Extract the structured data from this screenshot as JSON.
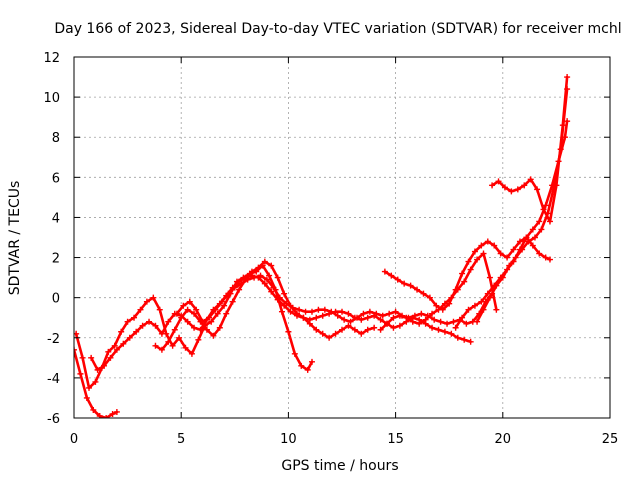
{
  "chart_data": {
    "type": "scatter",
    "title": "Day 166 of 2023, Sidereal Day-to-day VTEC variation (SDTVAR) for receiver mchl",
    "xlabel": "GPS time / hours",
    "ylabel": "SDTVAR / TECUs",
    "xlim": [
      0,
      25
    ],
    "ylim": [
      -6,
      12
    ],
    "xticks": [
      "0",
      "5",
      "10",
      "15",
      "20",
      "25"
    ],
    "yticks": [
      "-6",
      "-4",
      "-2",
      "0",
      "2",
      "4",
      "6",
      "8",
      "10",
      "12"
    ],
    "grid": true,
    "marker": "+",
    "color": "#ff0000",
    "series": [
      {
        "name": "s1",
        "x": [
          0.0,
          0.3,
          0.6,
          0.9,
          1.2,
          1.5,
          1.8,
          2.0
        ],
        "y": [
          -2.6,
          -3.8,
          -5.0,
          -5.6,
          -5.9,
          -6.0,
          -5.8,
          -5.7
        ]
      },
      {
        "name": "s2",
        "x": [
          0.1,
          0.4,
          0.7,
          1.0,
          1.3,
          1.6,
          1.9,
          2.2,
          2.5,
          2.8,
          3.1,
          3.4,
          3.7,
          4.0,
          4.3,
          4.6,
          4.9,
          5.2,
          5.5,
          5.8,
          6.1,
          6.4,
          6.7,
          7.0,
          7.3,
          7.6,
          7.9,
          8.2,
          8.5,
          8.8,
          9.1,
          9.4,
          9.7,
          10.0,
          10.3,
          10.6,
          10.9,
          11.1
        ],
        "y": [
          -1.8,
          -3.0,
          -4.5,
          -4.2,
          -3.5,
          -2.7,
          -2.4,
          -1.7,
          -1.2,
          -1.0,
          -0.6,
          -0.2,
          0.0,
          -0.6,
          -1.8,
          -2.4,
          -2.0,
          -2.5,
          -2.8,
          -2.1,
          -1.4,
          -1.2,
          -0.8,
          -0.4,
          0.2,
          0.8,
          1.0,
          1.2,
          1.3,
          1.6,
          1.1,
          0.4,
          -0.7,
          -1.7,
          -2.8,
          -3.4,
          -3.6,
          -3.2
        ]
      },
      {
        "name": "s3",
        "x": [
          0.8,
          1.1,
          1.4,
          1.7,
          2.0,
          2.3,
          2.6,
          2.9,
          3.2,
          3.5,
          3.8,
          4.1,
          4.4,
          4.7,
          5.0,
          5.3,
          5.6,
          5.9,
          6.2,
          6.5,
          6.8,
          7.1,
          7.4,
          7.7,
          8.0,
          8.3,
          8.6,
          8.9,
          9.2,
          9.5,
          9.8,
          10.1,
          10.4,
          10.7,
          11.0,
          11.3,
          11.6,
          11.9,
          12.2,
          12.5,
          12.8,
          13.1,
          13.4,
          13.7,
          14.0
        ],
        "y": [
          -3.0,
          -3.6,
          -3.4,
          -3.0,
          -2.6,
          -2.3,
          -2.0,
          -1.7,
          -1.4,
          -1.2,
          -1.4,
          -1.8,
          -1.2,
          -0.8,
          -0.9,
          -1.2,
          -1.5,
          -1.6,
          -1.1,
          -0.6,
          -0.3,
          0.1,
          0.5,
          0.8,
          1.0,
          1.1,
          1.0,
          0.7,
          0.3,
          -0.1,
          -0.4,
          -0.7,
          -0.9,
          -1.0,
          -1.3,
          -1.6,
          -1.8,
          -2.0,
          -1.8,
          -1.6,
          -1.4,
          -1.6,
          -1.8,
          -1.6,
          -1.5
        ]
      },
      {
        "name": "s4",
        "x": [
          3.8,
          4.1,
          4.4,
          4.7,
          5.0,
          5.3,
          5.6,
          5.9,
          6.2,
          6.5,
          6.8,
          7.1,
          7.4,
          7.7,
          8.0,
          8.3,
          8.6,
          8.9,
          9.2,
          9.5,
          9.8,
          10.1,
          10.4,
          10.7,
          11.0,
          11.3,
          11.6,
          11.9,
          12.2,
          12.5,
          12.8,
          13.1,
          13.4,
          13.7,
          14.0,
          14.3,
          14.6,
          14.9,
          15.2,
          15.5,
          15.8,
          16.1,
          16.4,
          16.7,
          17.0,
          17.3,
          17.6,
          17.9,
          18.2,
          18.5
        ],
        "y": [
          -2.4,
          -2.6,
          -2.2,
          -1.6,
          -1.0,
          -0.6,
          -0.8,
          -1.2,
          -1.6,
          -1.9,
          -1.5,
          -0.8,
          -0.2,
          0.4,
          0.9,
          1.3,
          1.5,
          1.8,
          1.6,
          1.0,
          0.2,
          -0.4,
          -0.8,
          -1.0,
          -1.1,
          -1.0,
          -0.9,
          -0.8,
          -0.7,
          -0.7,
          -0.8,
          -1.0,
          -1.1,
          -1.0,
          -0.9,
          -1.1,
          -1.3,
          -1.5,
          -1.4,
          -1.2,
          -1.0,
          -1.1,
          -1.3,
          -1.5,
          -1.6,
          -1.7,
          -1.8,
          -2.0,
          -2.1,
          -2.2
        ]
      },
      {
        "name": "s5",
        "x": [
          4.8,
          5.1,
          5.4,
          5.7,
          6.0,
          6.3,
          6.6,
          6.9,
          7.2,
          7.5,
          7.8,
          8.1,
          8.4,
          8.7,
          9.0,
          9.3,
          9.6,
          9.9,
          10.2,
          10.5,
          10.8,
          11.1,
          11.4,
          11.7,
          12.0,
          12.3,
          12.6,
          12.9,
          13.2,
          13.5,
          13.8,
          14.1,
          14.4,
          14.7,
          15.0,
          15.3,
          15.6,
          15.9,
          16.2,
          16.5,
          16.8,
          17.1,
          17.4,
          17.7,
          18.0,
          18.3,
          18.6,
          18.9,
          19.2,
          19.5
        ],
        "y": [
          -0.8,
          -0.4,
          -0.2,
          -0.6,
          -1.2,
          -1.0,
          -0.6,
          -0.2,
          0.2,
          0.5,
          0.7,
          0.9,
          1.0,
          1.1,
          0.9,
          0.5,
          0.0,
          -0.3,
          -0.5,
          -0.6,
          -0.7,
          -0.7,
          -0.6,
          -0.6,
          -0.7,
          -0.9,
          -1.1,
          -1.2,
          -1.0,
          -0.8,
          -0.7,
          -0.8,
          -0.9,
          -0.8,
          -0.7,
          -0.9,
          -1.0,
          -0.9,
          -0.8,
          -0.9,
          -1.1,
          -1.2,
          -1.3,
          -1.2,
          -1.1,
          -1.3,
          -1.2,
          -0.8,
          -0.2,
          0.2
        ]
      },
      {
        "name": "s6",
        "x": [
          14.5,
          14.8,
          15.1,
          15.4,
          15.7,
          16.0,
          16.3,
          16.6,
          16.9,
          17.2,
          17.5,
          17.8,
          18.1,
          18.4,
          18.7,
          19.0,
          19.3,
          19.6,
          19.9,
          20.2,
          20.5,
          20.8,
          21.1,
          21.4,
          21.7,
          22.0,
          22.2
        ],
        "y": [
          1.3,
          1.1,
          0.9,
          0.7,
          0.6,
          0.4,
          0.2,
          0.0,
          -0.4,
          -0.6,
          -0.3,
          0.4,
          1.2,
          1.8,
          2.3,
          2.6,
          2.8,
          2.6,
          2.2,
          2.0,
          2.4,
          2.8,
          3.0,
          2.6,
          2.2,
          2.0,
          1.9
        ]
      },
      {
        "name": "s7",
        "x": [
          17.8,
          18.1,
          18.4,
          18.7,
          19.0,
          19.3,
          19.6,
          19.9,
          20.2,
          20.5,
          20.8,
          21.1,
          21.4,
          21.7,
          22.0,
          22.3,
          22.6,
          22.9,
          23.0
        ],
        "y": [
          -1.5,
          -1.0,
          -0.6,
          -0.4,
          -0.2,
          0.2,
          0.6,
          1.0,
          1.4,
          1.8,
          2.4,
          3.0,
          3.4,
          3.8,
          4.6,
          5.6,
          6.8,
          8.0,
          8.8
        ]
      },
      {
        "name": "s8",
        "x": [
          19.5,
          19.8,
          20.1,
          20.4,
          20.7,
          21.0,
          21.3,
          21.6,
          21.9,
          22.2,
          22.5,
          22.8,
          23.0
        ],
        "y": [
          5.6,
          5.8,
          5.5,
          5.3,
          5.4,
          5.6,
          5.9,
          5.4,
          4.4,
          3.8,
          5.6,
          8.6,
          11.0
        ]
      },
      {
        "name": "s9",
        "x": [
          18.8,
          19.1,
          19.4,
          19.7,
          20.0,
          20.3,
          20.6,
          20.9,
          21.2,
          21.5,
          21.8,
          22.1,
          22.4,
          22.7,
          23.0
        ],
        "y": [
          -1.2,
          -0.6,
          0.0,
          0.6,
          1.0,
          1.6,
          2.0,
          2.4,
          2.8,
          3.0,
          3.4,
          4.2,
          5.6,
          7.4,
          10.4
        ]
      },
      {
        "name": "s10",
        "x": [
          14.3,
          14.6,
          14.9,
          15.2,
          15.5,
          15.8,
          16.1,
          16.4,
          16.7,
          17.0,
          17.3,
          17.6,
          17.9,
          18.2,
          18.5,
          18.8,
          19.1,
          19.4,
          19.7
        ],
        "y": [
          -1.6,
          -1.3,
          -1.0,
          -0.9,
          -1.0,
          -1.2,
          -1.3,
          -1.1,
          -0.8,
          -0.6,
          -0.3,
          0.0,
          0.4,
          0.8,
          1.4,
          1.9,
          2.2,
          1.0,
          -0.6
        ]
      }
    ]
  }
}
